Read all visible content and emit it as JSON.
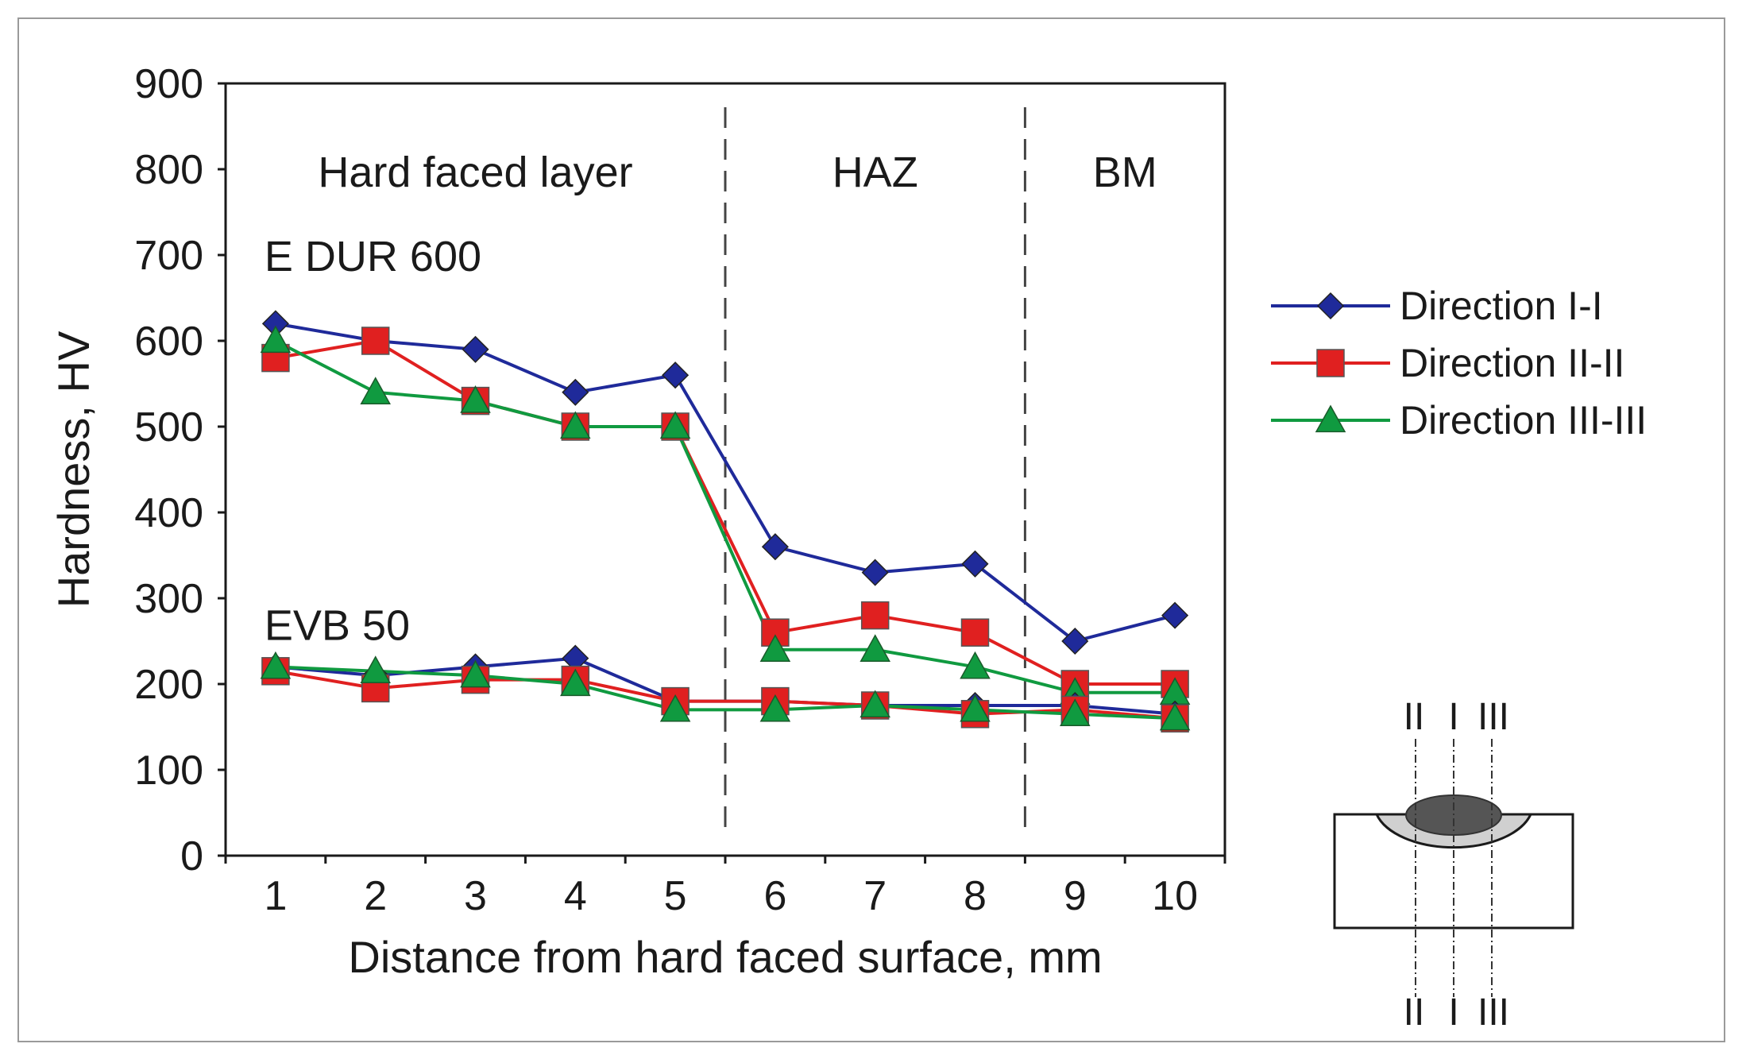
{
  "chart_data": {
    "type": "line",
    "title": "",
    "xlabel": "Distance from hard faced surface, mm",
    "ylabel": "Hardness, HV",
    "x": [
      1,
      2,
      3,
      4,
      5,
      6,
      7,
      8,
      9,
      10
    ],
    "xlim": [
      0.5,
      10.5
    ],
    "ylim": [
      0,
      900
    ],
    "yticks": [
      0,
      100,
      200,
      300,
      400,
      500,
      600,
      700,
      800,
      900
    ],
    "grid": false,
    "legend_position": "right",
    "regions": [
      {
        "label": "Hard faced layer",
        "from": 0.5,
        "to": 5.5
      },
      {
        "label": "HAZ",
        "from": 5.5,
        "to": 8.5
      },
      {
        "label": "BM",
        "from": 8.5,
        "to": 10.5
      }
    ],
    "region_boundaries": [
      5.5,
      8.5
    ],
    "group_labels": [
      {
        "text": "E DUR 600",
        "anchor_x": 1,
        "anchor_y": 700
      },
      {
        "text": "EVB 50",
        "anchor_x": 1,
        "anchor_y": 270
      }
    ],
    "legend": [
      {
        "name": "Direction I-I",
        "color": "#1f2a9a",
        "marker": "diamond"
      },
      {
        "name": "Direction II-II",
        "color": "#e02020",
        "marker": "square"
      },
      {
        "name": "Direction III-III",
        "color": "#109a40",
        "marker": "triangle"
      }
    ],
    "series": [
      {
        "name": "Direction I-I",
        "group": "E DUR 600",
        "color": "#1f2a9a",
        "marker": "diamond",
        "values": [
          620,
          600,
          590,
          540,
          560,
          360,
          330,
          340,
          250,
          280
        ]
      },
      {
        "name": "Direction II-II",
        "group": "E DUR 600",
        "color": "#e02020",
        "marker": "square",
        "values": [
          580,
          600,
          530,
          500,
          500,
          260,
          280,
          260,
          200,
          200
        ]
      },
      {
        "name": "Direction III-III",
        "group": "E DUR 600",
        "color": "#109a40",
        "marker": "triangle",
        "values": [
          600,
          540,
          530,
          500,
          500,
          240,
          240,
          220,
          190,
          190
        ]
      },
      {
        "name": "Direction I-I",
        "group": "EVB 50",
        "color": "#1f2a9a",
        "marker": "diamond",
        "values": [
          220,
          210,
          220,
          230,
          180,
          180,
          175,
          175,
          175,
          165
        ]
      },
      {
        "name": "Direction II-II",
        "group": "EVB 50",
        "color": "#e02020",
        "marker": "square",
        "values": [
          215,
          195,
          205,
          205,
          180,
          180,
          175,
          165,
          170,
          160
        ]
      },
      {
        "name": "Direction III-III",
        "group": "EVB 50",
        "color": "#109a40",
        "marker": "triangle",
        "values": [
          220,
          215,
          210,
          200,
          170,
          170,
          175,
          170,
          165,
          160
        ]
      }
    ]
  },
  "diagram": {
    "top_labels": [
      "II",
      "I",
      "III"
    ],
    "bottom_labels": [
      "II",
      "I",
      "III"
    ],
    "colors": {
      "deposit": "#555555",
      "haz": "#d0d0d0",
      "plate": "#ffffff",
      "outline": "#1a1a1a"
    }
  }
}
